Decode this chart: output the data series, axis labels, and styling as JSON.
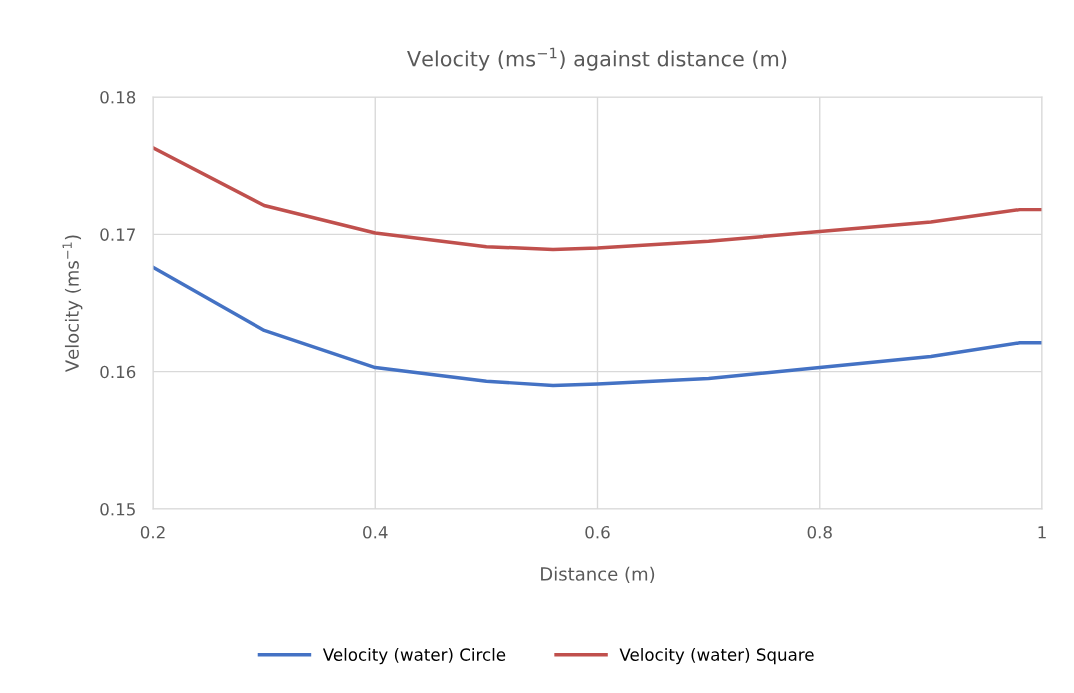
{
  "chart_data": {
    "type": "line",
    "title": "Velocity (ms$^{−1}$) against distance (m)",
    "xlabel": "Distance (m)",
    "ylabel": "Velocity (ms$^{−1}$)",
    "x": [
      0.2,
      0.3,
      0.4,
      0.5,
      0.56,
      0.6,
      0.7,
      0.8,
      0.9,
      0.98,
      1.0
    ],
    "series": [
      {
        "name": "Velocity (water) Circle",
        "color": "#4472c4",
        "values": [
          0.1676,
          0.163,
          0.1603,
          0.1593,
          0.159,
          0.1591,
          0.1595,
          0.1603,
          0.1611,
          0.1621,
          0.1621
        ]
      },
      {
        "name": "Velocity (water) Square",
        "color": "#c0504d",
        "values": [
          0.1763,
          0.1721,
          0.1701,
          0.1691,
          0.1689,
          0.169,
          0.1695,
          0.1702,
          0.1709,
          0.1718,
          0.1718
        ]
      }
    ],
    "xlim": [
      0.2,
      1
    ],
    "xticks": [
      0.2,
      0.4,
      0.6,
      0.8,
      1
    ],
    "ylim": [
      0.15,
      0.18
    ],
    "yticks": [
      0.15,
      0.16,
      0.17,
      0.18
    ],
    "grid": true,
    "legend": "bottom",
    "line_style": "solid"
  }
}
